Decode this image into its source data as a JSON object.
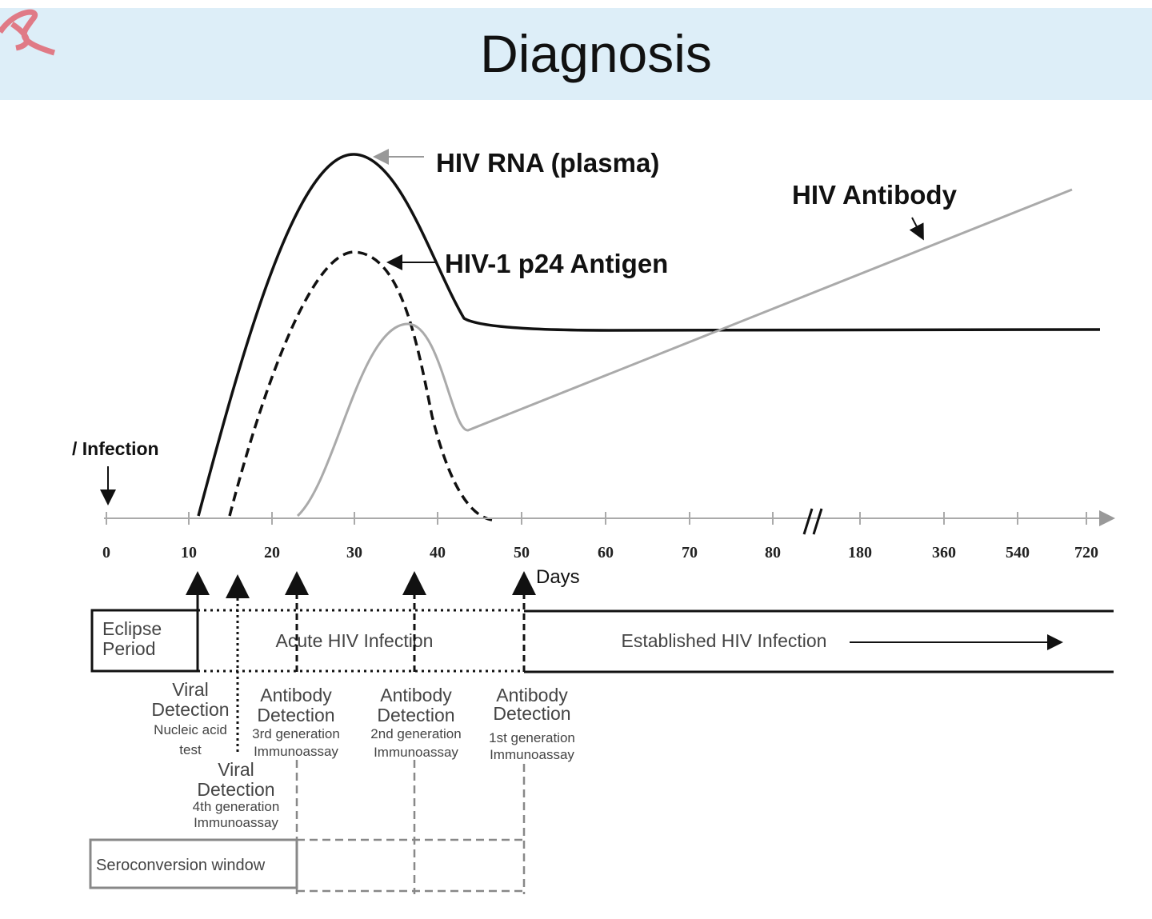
{
  "header": {
    "title": "Diagnosis"
  },
  "curves": {
    "rna": "HIV RNA (plasma)",
    "p24": "HIV-1 p24 Antigen",
    "antibody": "HIV Antibody"
  },
  "infection": "/ Infection",
  "axis": {
    "title": "Days",
    "ticks": [
      "0",
      "10",
      "20",
      "30",
      "40",
      "50",
      "60",
      "70",
      "80",
      "180",
      "360",
      "540",
      "720"
    ]
  },
  "phases": {
    "eclipse": [
      "Eclipse",
      "Period"
    ],
    "acute": "Acute HIV Infection",
    "established": "Established HIV Infection",
    "window": "Seroconversion window"
  },
  "detections": [
    {
      "lines": [
        "Viral",
        "Detection",
        "Nucleic acid",
        "test"
      ]
    },
    {
      "lines": [
        "Antibody",
        "Detection",
        "3rd generation",
        "Immunoassay"
      ]
    },
    {
      "lines": [
        "Antibody",
        "Detection",
        "2nd generation",
        "Immunoassay"
      ]
    },
    {
      "lines": [
        "Antibody",
        "Detection",
        "1st generation",
        "Immunoassay"
      ]
    },
    {
      "lines": [
        "Viral",
        "Detection",
        "4th generation",
        "Immunoassay"
      ]
    }
  ]
}
